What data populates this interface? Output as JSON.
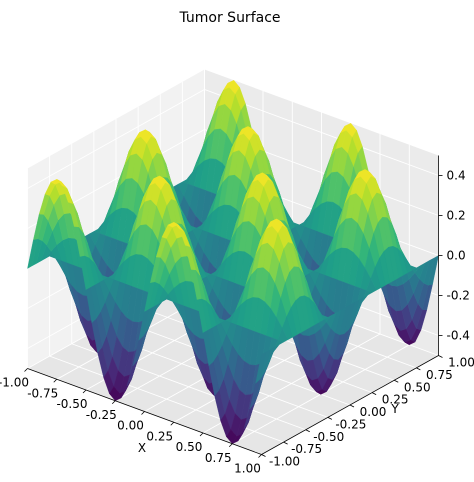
{
  "chart_data": {
    "type": "surface",
    "title": "Tumor Surface",
    "xlabel": "X",
    "ylabel": "Y",
    "zlabel": "",
    "xlim": [
      -1.0,
      1.0
    ],
    "ylim": [
      -1.0,
      1.0
    ],
    "zlim": [
      -0.5,
      0.5
    ],
    "x_ticks": [
      "-1.00",
      "-0.75",
      "-0.50",
      "-0.25",
      "0.00",
      "0.25",
      "0.50",
      "0.75",
      "1.00"
    ],
    "y_ticks": [
      "-1.00",
      "-0.75",
      "-0.50",
      "-0.25",
      "0.00",
      "0.25",
      "0.50",
      "0.75",
      "1.00"
    ],
    "z_ticks": [
      "-0.4",
      "-0.2",
      "0.0",
      "0.2",
      "0.4"
    ],
    "surface": "z = 0.5 * sin(2πx) * cos(2πy)",
    "colormap": "viridis",
    "grid": true
  }
}
